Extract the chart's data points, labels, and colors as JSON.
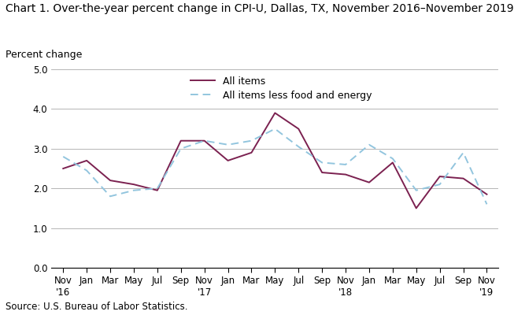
{
  "title": "Chart 1. Over-the-year percent change in CPI-U, Dallas, TX, November 2016–November 2019",
  "ylabel": "Percent change",
  "source": "Source: U.S. Bureau of Labor Statistics.",
  "ylim": [
    0.0,
    5.0
  ],
  "yticks": [
    0.0,
    1.0,
    2.0,
    3.0,
    4.0,
    5.0
  ],
  "x_labels": [
    "Nov\n'16",
    "Jan",
    "Mar",
    "May",
    "Jul",
    "Sep",
    "Nov\n'17",
    "Jan",
    "Mar",
    "May",
    "Jul",
    "Sep",
    "Nov\n'18",
    "Jan",
    "Mar",
    "May",
    "Jul",
    "Sep",
    "Nov\n'19"
  ],
  "all_items": [
    2.5,
    2.7,
    2.2,
    2.1,
    1.95,
    3.2,
    3.2,
    2.7,
    2.9,
    3.9,
    3.5,
    2.4,
    2.35,
    2.15,
    2.65,
    1.5,
    2.3,
    2.25,
    1.85
  ],
  "all_items_less": [
    2.8,
    2.45,
    1.8,
    1.95,
    2.0,
    3.0,
    3.2,
    3.1,
    3.2,
    3.5,
    3.05,
    2.65,
    2.6,
    3.1,
    2.75,
    1.95,
    2.1,
    2.9,
    1.6
  ],
  "line1_color": "#7B2150",
  "line2_color": "#92C5DE",
  "legend_label1": "All items",
  "legend_label2": "All items less food and energy",
  "title_fontsize": 10,
  "label_fontsize": 9,
  "tick_fontsize": 8.5,
  "grid_color": "#AAAAAA"
}
